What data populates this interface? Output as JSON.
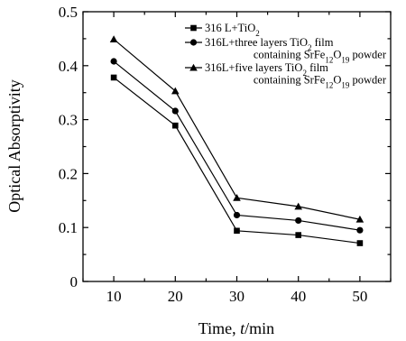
{
  "chart_data": {
    "type": "line",
    "title": "",
    "xlabel_parts": [
      {
        "t": "Time, ",
        "i": false
      },
      {
        "t": "t",
        "i": true
      },
      {
        "t": "/min",
        "i": false
      }
    ],
    "ylabel": "Optical Absorptivity",
    "x": [
      10,
      20,
      30,
      40,
      50
    ],
    "xlim": [
      5,
      55
    ],
    "ylim": [
      0,
      0.5
    ],
    "xticks": [
      "10",
      "20",
      "30",
      "40",
      "50"
    ],
    "yticks": [
      "0",
      "0.1",
      "0.2",
      "0.3",
      "0.4",
      "0.5"
    ],
    "grid": false,
    "legend_position": "top-right",
    "series": [
      {
        "marker": "square",
        "values": [
          0.378,
          0.289,
          0.094,
          0.086,
          0.071
        ],
        "legend_lines": [
          [
            {
              "t": "316 L+TiO",
              "s": ""
            },
            {
              "t": "2",
              "s": "sub"
            }
          ]
        ]
      },
      {
        "marker": "circle",
        "values": [
          0.408,
          0.316,
          0.123,
          0.113,
          0.095
        ],
        "legend_lines": [
          [
            {
              "t": "316L+three layers TiO",
              "s": ""
            },
            {
              "t": "2",
              "s": "sub"
            },
            {
              "t": " film",
              "s": ""
            }
          ],
          [
            {
              "t": "containing SrFe",
              "s": ""
            },
            {
              "t": "12",
              "s": "sub"
            },
            {
              "t": "O",
              "s": ""
            },
            {
              "t": "19",
              "s": "sub"
            },
            {
              "t": " powder",
              "s": ""
            }
          ]
        ]
      },
      {
        "marker": "triangle",
        "values": [
          0.449,
          0.353,
          0.155,
          0.139,
          0.115
        ],
        "legend_lines": [
          [
            {
              "t": "316L+five layers TiO",
              "s": ""
            },
            {
              "t": "2",
              "s": "sub"
            },
            {
              "t": " film",
              "s": ""
            }
          ],
          [
            {
              "t": "containing SrFe",
              "s": ""
            },
            {
              "t": "12",
              "s": "sub"
            },
            {
              "t": "O",
              "s": ""
            },
            {
              "t": "19",
              "s": "sub"
            },
            {
              "t": " powder",
              "s": ""
            }
          ]
        ]
      }
    ]
  }
}
